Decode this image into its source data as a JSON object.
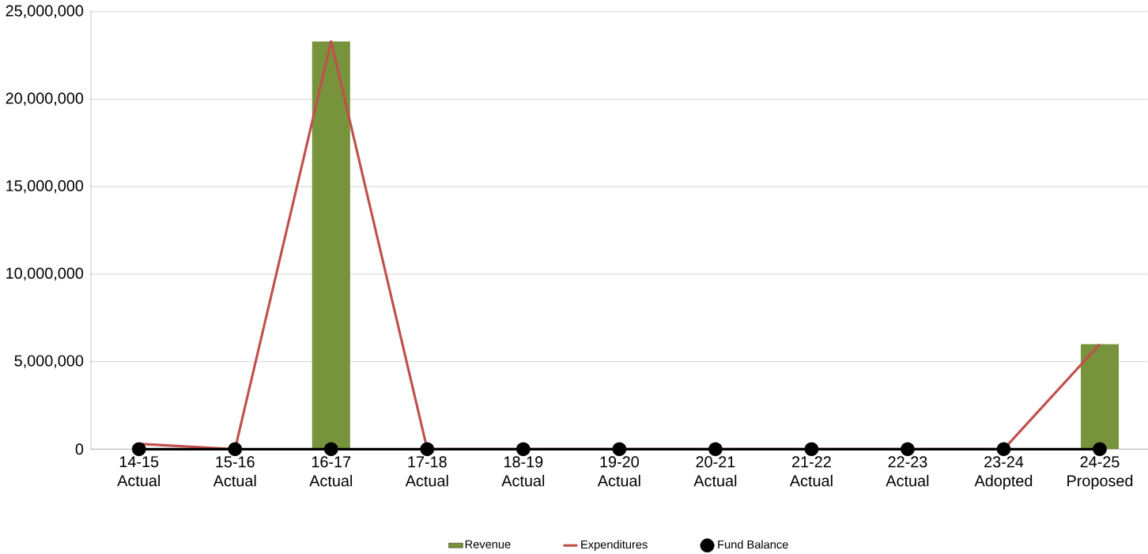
{
  "chart_data": {
    "type": "bar",
    "categories": [
      "14-15 Actual",
      "15-16 Actual",
      "16-17 Actual",
      "17-18 Actual",
      "18-19 Actual",
      "19-20 Actual",
      "20-21 Actual",
      "21-22 Actual",
      "22-23 Actual",
      "23-24 Adopted",
      "24-25 Proposed"
    ],
    "series": [
      {
        "name": "Revenue",
        "color": "#77933c",
        "values": [
          0,
          0,
          23300000,
          0,
          0,
          0,
          0,
          0,
          0,
          0,
          6000000
        ]
      },
      {
        "name": "Expenditures",
        "type": "line",
        "color": "#c0504d",
        "marker": "none",
        "values": [
          300000,
          0,
          23300000,
          0,
          0,
          0,
          0,
          0,
          0,
          0,
          6000000
        ]
      },
      {
        "name": "Fund Balance",
        "type": "line",
        "color": "#000000",
        "marker": "circle",
        "values": [
          0,
          0,
          0,
          0,
          0,
          0,
          0,
          0,
          0,
          0,
          0
        ]
      }
    ],
    "ylim": [
      0,
      25000000
    ],
    "yticks": [
      {
        "value": 0,
        "label": "0"
      },
      {
        "value": 5000000,
        "label": "5,000,000"
      },
      {
        "value": 10000000,
        "label": "10,000,000"
      },
      {
        "value": 15000000,
        "label": "15,000,000"
      },
      {
        "value": 20000000,
        "label": "20,000,000"
      },
      {
        "value": 25000000,
        "label": "25,000,000"
      }
    ],
    "grid": "y",
    "legend": "bottom"
  }
}
